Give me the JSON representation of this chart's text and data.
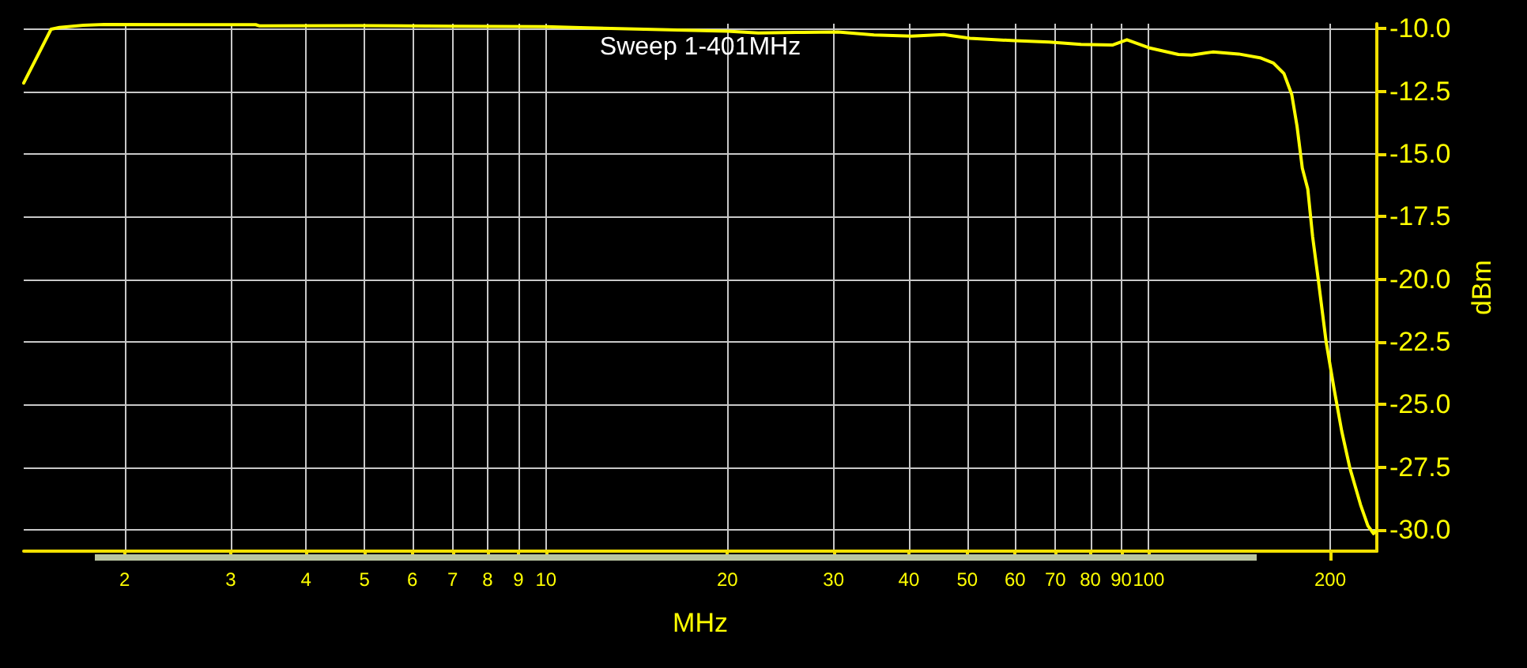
{
  "chart_data": {
    "type": "line",
    "title": "Sweep 1-401MHz",
    "xlabel": "MHz",
    "ylabel": "dBm",
    "x": [
      1.36,
      1.51,
      1.56,
      1.71,
      1.85,
      3.3,
      3.35,
      5.0,
      7.0,
      10.0,
      11.4,
      20.0,
      22.5,
      26.0,
      30.5,
      35.0,
      40.4,
      45.7,
      50.5,
      60.0,
      68.4,
      77.2,
      87.2,
      92.0,
      100.0,
      112.0,
      117.8,
      127.7,
      141.0,
      153.0,
      161.0,
      167.6,
      172.7,
      176.2,
      179.8,
      183.6,
      187.0,
      191.0,
      196.9,
      203.0,
      209.0,
      215.6,
      224.6,
      231.0,
      236.0,
      238.0
    ],
    "series": [
      {
        "color": "#ffff00",
        "values": [
          -12.17,
          -10.02,
          -9.95,
          -9.86,
          -9.83,
          -9.84,
          -9.89,
          -9.88,
          -9.9,
          -9.92,
          -9.96,
          -10.1,
          -10.17,
          -10.15,
          -10.13,
          -10.25,
          -10.3,
          -10.23,
          -10.38,
          -10.48,
          -10.53,
          -10.63,
          -10.65,
          -10.44,
          -10.76,
          -11.03,
          -11.05,
          -10.93,
          -11.01,
          -11.16,
          -11.37,
          -11.79,
          -12.63,
          -13.89,
          -15.57,
          -16.4,
          -18.29,
          -19.97,
          -22.49,
          -24.38,
          -26.06,
          -27.53,
          -29.0,
          -29.84,
          -30.15,
          -30.05
        ]
      }
    ],
    "log": "x",
    "xlim": [
      1.36,
      239
    ],
    "xticks": [
      2,
      3,
      4,
      5,
      6,
      7,
      8,
      9,
      10,
      20,
      30,
      40,
      50,
      60,
      70,
      80,
      90,
      100,
      200
    ],
    "ylim": [
      -30.85,
      -9.8
    ],
    "yticks": [
      {
        "value": -10,
        "label": "-10.0"
      },
      -12.5,
      {
        "value": -15,
        "label": "-15.0"
      },
      -17.5,
      {
        "value": -20,
        "label": "-20.0"
      },
      -22.5,
      {
        "value": -25,
        "label": "-25.0"
      },
      -27.5,
      {
        "value": -30,
        "label": "-30.0"
      }
    ],
    "grid": true,
    "marker": "none",
    "line_style": "solid"
  }
}
